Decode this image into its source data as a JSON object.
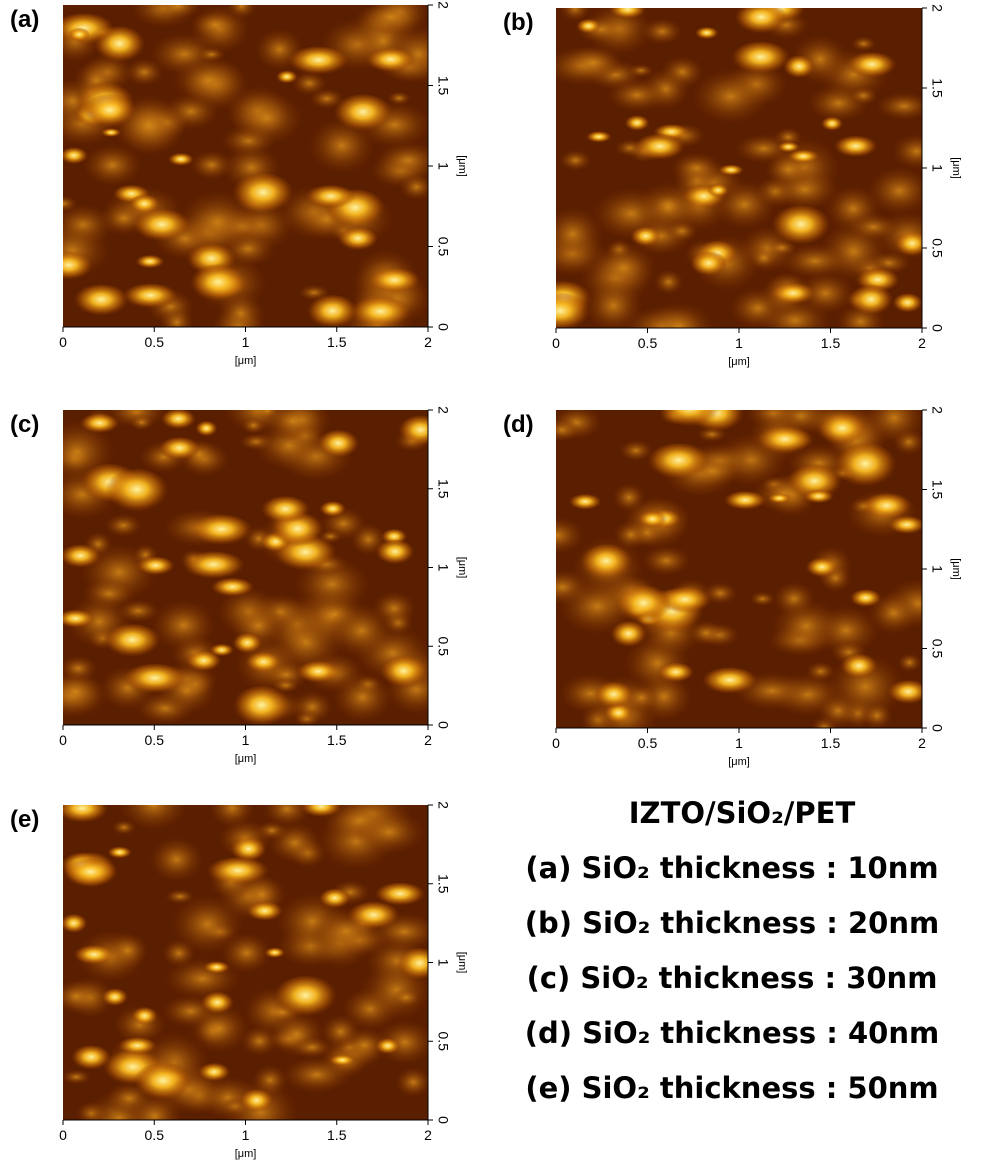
{
  "panels": [
    {
      "label": "(a)",
      "xticks": [
        "0",
        "0.5",
        "1",
        "1.5",
        "2"
      ],
      "yticks": [
        "0",
        "0.5",
        "1",
        "1.5",
        "2"
      ],
      "xunit": "[μm]",
      "yunit": "[μm]"
    },
    {
      "label": "(b)",
      "xticks": [
        "0",
        "0.5",
        "1",
        "1.5",
        "2"
      ],
      "yticks": [
        "0",
        "0.5",
        "1",
        "1.5",
        "2"
      ],
      "xunit": "[μm]",
      "yunit": "[μm]"
    },
    {
      "label": "(c)",
      "xticks": [
        "0",
        "0.5",
        "1",
        "1.5",
        "2"
      ],
      "yticks": [
        "0",
        "0.5",
        "1",
        "1.5",
        "2"
      ],
      "xunit": "[μm]",
      "yunit": "[μm]"
    },
    {
      "label": "(d)",
      "xticks": [
        "0",
        "0.5",
        "1",
        "1.5",
        "2"
      ],
      "yticks": [
        "0",
        "0.5",
        "1",
        "1.5",
        "2"
      ],
      "xunit": "[μm]",
      "yunit": "[μm]"
    },
    {
      "label": "(e)",
      "xticks": [
        "0",
        "0.5",
        "1",
        "1.5",
        "2"
      ],
      "yticks": [
        "0",
        "0.5",
        "1",
        "1.5",
        "2"
      ],
      "xunit": "[μm]",
      "yunit": "[μm]"
    }
  ],
  "legend": {
    "title": "IZTO/SiO₂/PET",
    "items": [
      "(a) SiO₂ thickness : 10nm",
      "(b) SiO₂ thickness : 20nm",
      "(c) SiO₂ thickness : 30nm",
      "(d) SiO₂ thickness : 40nm",
      "(e) SiO₂ thickness : 50nm"
    ]
  }
}
